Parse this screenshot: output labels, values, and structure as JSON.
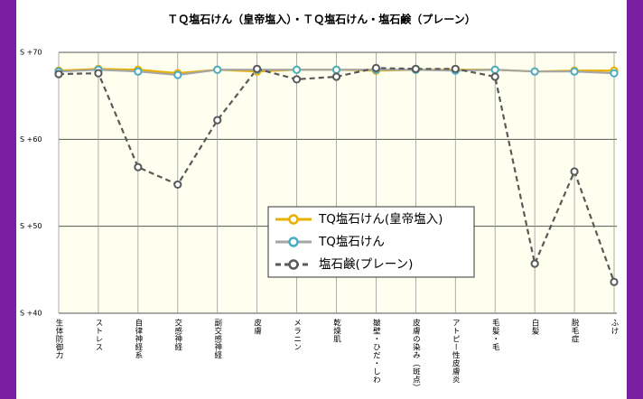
{
  "chart_data": {
    "type": "line",
    "title": "ＴＱ塩石けん（皇帝塩入）・ＴＱ塩石けん・塩石鹸（プレーン）",
    "categories": [
      "生体防御力",
      "ストレス",
      "自律神経系",
      "交感神経",
      "副交感神経",
      "皮膚",
      "メラニン",
      "乾燥肌",
      "皺壁・ひだ・しわ",
      "皮膚の染み（斑点）",
      "アトピー性皮膚炎",
      "毛髪・毛",
      "白髪",
      "脱毛症",
      "ふけ"
    ],
    "series": [
      {
        "name": "TQ塩石けん(皇帝塩入)",
        "color": "#e8b000",
        "marker_color": "#e8b000",
        "dashed": false,
        "values": [
          67.9,
          68.1,
          68.0,
          67.6,
          68.0,
          67.8,
          68.0,
          68.0,
          67.9,
          68.0,
          68.0,
          68.0,
          67.8,
          67.9,
          67.9
        ]
      },
      {
        "name": "TQ塩石けん",
        "color": "#a6a6a6",
        "marker_color": "#4bacc6",
        "dashed": false,
        "values": [
          67.8,
          68.0,
          67.8,
          67.4,
          68.0,
          68.0,
          68.0,
          68.0,
          68.0,
          68.0,
          67.9,
          68.0,
          67.8,
          67.8,
          67.6
        ]
      },
      {
        "name": "塩石鹸(プレーン)",
        "color": "#595959",
        "marker_color": "#595959",
        "dashed": true,
        "values": [
          67.5,
          67.6,
          56.8,
          54.8,
          62.2,
          68.1,
          66.9,
          67.2,
          68.2,
          68.1,
          68.1,
          67.2,
          45.7,
          56.3,
          43.6
        ]
      }
    ],
    "ylim": [
      40,
      70
    ],
    "yticks": [
      {
        "value": 40,
        "label": "S +40"
      },
      {
        "value": 50,
        "label": "S +50"
      },
      {
        "value": 60,
        "label": "S +60"
      },
      {
        "value": 70,
        "label": "S +70"
      }
    ],
    "grid": true,
    "legend": "center"
  }
}
